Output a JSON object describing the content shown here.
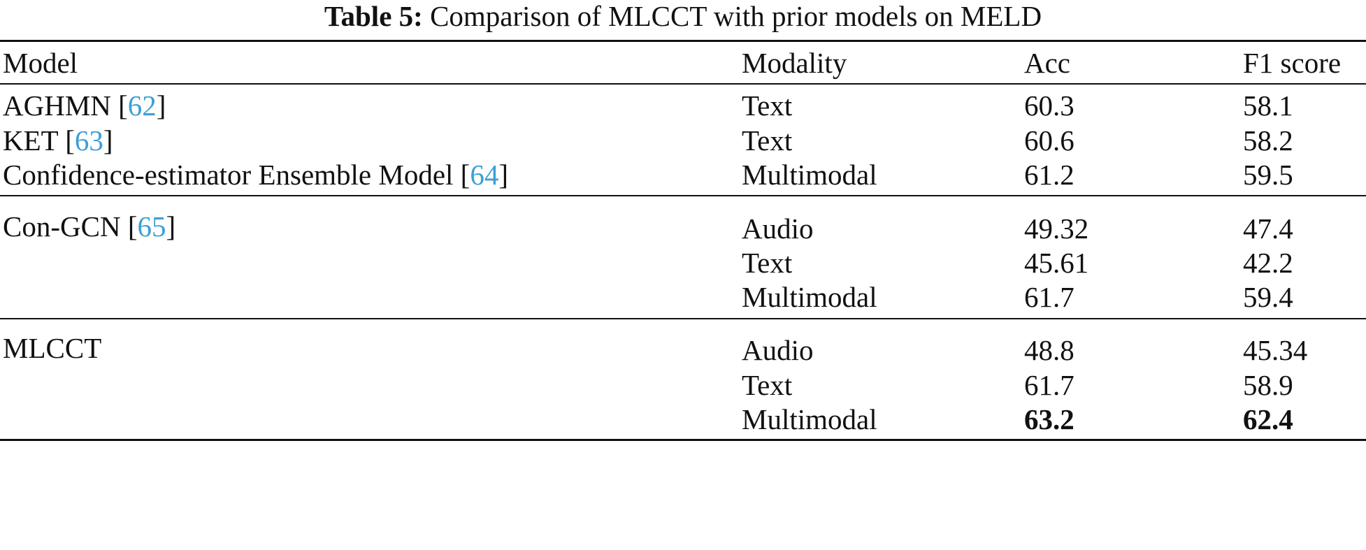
{
  "caption": {
    "label": "Table 5:",
    "text": "Comparison of MLCCT with prior models on MELD"
  },
  "headers": {
    "model": "Model",
    "modality": "Modality",
    "acc": "Acc",
    "f1": "F1 score"
  },
  "groups": [
    {
      "rows": [
        {
          "model": "AGHMN [",
          "ref": "62",
          "close": "]",
          "modality": "Text",
          "acc": "60.3",
          "f1": "58.1"
        },
        {
          "model": "KET [",
          "ref": "63",
          "close": "]",
          "modality": "Text",
          "acc": "60.6",
          "f1": "58.2"
        },
        {
          "model": "Confidence-estimator Ensemble Model [",
          "ref": "64",
          "close": "]",
          "modality": "Multimodal",
          "acc": "61.2",
          "f1": "59.5"
        }
      ]
    },
    {
      "model": "Con-GCN [",
      "ref": "65",
      "close": "]",
      "rows": [
        {
          "modality": "Audio",
          "acc": "49.32",
          "f1": "47.4"
        },
        {
          "modality": "Text",
          "acc": "45.61",
          "f1": "42.2"
        },
        {
          "modality": "Multimodal",
          "acc": "61.7",
          "f1": "59.4"
        }
      ]
    },
    {
      "model": "MLCCT",
      "rows": [
        {
          "modality": "Audio",
          "acc": "48.8",
          "f1": "45.34"
        },
        {
          "modality": "Text",
          "acc": "61.7",
          "f1": "58.9"
        },
        {
          "modality": "Multimodal",
          "acc": "63.2",
          "f1": "62.4",
          "bold": true
        }
      ]
    }
  ]
}
